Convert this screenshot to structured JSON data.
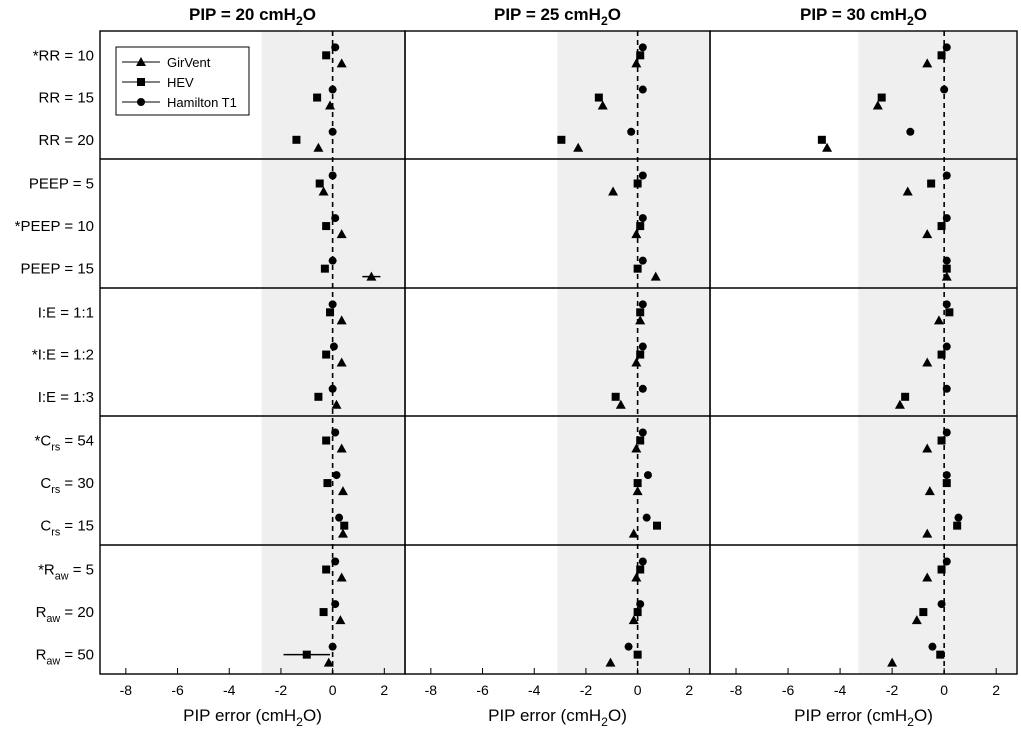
{
  "figure": {
    "xlabel": "PIP error (cmH2O)",
    "xlim": [
      -9,
      2.8
    ],
    "xticks": [
      -8,
      -6,
      -4,
      -2,
      0,
      2
    ],
    "tolerance_note": "grey band marks clinical tolerance region"
  },
  "chart_data": {
    "type": "scatter",
    "row_labels": [
      {
        "prefix": "*",
        "base": "RR",
        "sub": "",
        "value": "10"
      },
      {
        "prefix": "",
        "base": "RR",
        "sub": "",
        "value": "15"
      },
      {
        "prefix": "",
        "base": "RR",
        "sub": "",
        "value": "20"
      },
      {
        "prefix": "",
        "base": "PEEP",
        "sub": "",
        "value": "5"
      },
      {
        "prefix": "*",
        "base": "PEEP",
        "sub": "",
        "value": "10"
      },
      {
        "prefix": "",
        "base": "PEEP",
        "sub": "",
        "value": "15"
      },
      {
        "prefix": "",
        "base": "I:E",
        "sub": "",
        "value": "1:1"
      },
      {
        "prefix": "*",
        "base": "I:E",
        "sub": "",
        "value": "1:2"
      },
      {
        "prefix": "",
        "base": "I:E",
        "sub": "",
        "value": "1:3"
      },
      {
        "prefix": "*",
        "base": "C",
        "sub": "rs",
        "value": "54"
      },
      {
        "prefix": "",
        "base": "C",
        "sub": "rs",
        "value": "30"
      },
      {
        "prefix": "",
        "base": "C",
        "sub": "rs",
        "value": "15"
      },
      {
        "prefix": "*",
        "base": "R",
        "sub": "aw",
        "value": "5"
      },
      {
        "prefix": "",
        "base": "R",
        "sub": "aw",
        "value": "20"
      },
      {
        "prefix": "",
        "base": "R",
        "sub": "aw",
        "value": "50"
      }
    ],
    "legend": {
      "location": "top-left of first panel",
      "entries": [
        "GirVent",
        "HEV",
        "Hamilton T1"
      ]
    },
    "panels": [
      {
        "title": "PIP = 20 cmH2O",
        "tolerance_band": [
          -2.75,
          2.75
        ],
        "series": [
          {
            "name": "Hamilton T1",
            "marker": "circle",
            "values": [
              0.1,
              0.0,
              0.0,
              0.0,
              0.1,
              0.0,
              0.0,
              0.05,
              0.0,
              0.1,
              0.15,
              0.25,
              0.1,
              0.1,
              0.0
            ],
            "errors": [
              0,
              0,
              0,
              0,
              0,
              0,
              0,
              0,
              0,
              0,
              0,
              0,
              0,
              0,
              0
            ]
          },
          {
            "name": "HEV",
            "marker": "square",
            "values": [
              -0.25,
              -0.6,
              -1.4,
              -0.5,
              -0.25,
              -0.3,
              -0.1,
              -0.25,
              -0.55,
              -0.25,
              -0.2,
              0.45,
              -0.25,
              -0.35,
              -1.0
            ],
            "errors": [
              0,
              0,
              0,
              0,
              0,
              0,
              0,
              0,
              0,
              0,
              0,
              0,
              0,
              0,
              0.9
            ]
          },
          {
            "name": "GirVent",
            "marker": "triangle",
            "values": [
              0.35,
              -0.1,
              -0.55,
              -0.35,
              0.35,
              1.5,
              0.35,
              0.35,
              0.15,
              0.35,
              0.4,
              0.4,
              0.35,
              0.3,
              -0.15
            ],
            "errors": [
              0,
              0,
              0,
              0,
              0,
              0.35,
              0,
              0,
              0,
              0,
              0,
              0,
              0,
              0,
              0
            ]
          }
        ]
      },
      {
        "title": "PIP = 25 cmH2O",
        "tolerance_band": [
          -3.1,
          2.75
        ],
        "series": [
          {
            "name": "Hamilton T1",
            "marker": "circle",
            "values": [
              0.2,
              0.2,
              -0.25,
              0.2,
              0.2,
              0.2,
              0.2,
              0.2,
              0.2,
              0.2,
              0.4,
              0.35,
              0.2,
              0.1,
              -0.35
            ],
            "errors": [
              0,
              0,
              0,
              0,
              0,
              0,
              0,
              0,
              0,
              0,
              0,
              0,
              0,
              0,
              0
            ]
          },
          {
            "name": "HEV",
            "marker": "square",
            "values": [
              0.1,
              -1.5,
              -2.95,
              0.0,
              0.1,
              0.0,
              0.1,
              0.1,
              -0.85,
              0.1,
              0.0,
              0.75,
              0.1,
              0.0,
              0.0
            ],
            "errors": [
              0,
              0,
              0,
              0,
              0,
              0,
              0,
              0,
              0,
              0,
              0,
              0,
              0,
              0,
              0
            ]
          },
          {
            "name": "GirVent",
            "marker": "triangle",
            "values": [
              -0.05,
              -1.35,
              -2.3,
              -0.95,
              -0.05,
              0.7,
              0.1,
              -0.05,
              -0.65,
              -0.05,
              0.0,
              -0.15,
              -0.05,
              -0.15,
              -1.05
            ],
            "errors": [
              0,
              0,
              0,
              0,
              0,
              0,
              0,
              0,
              0,
              0,
              0,
              0,
              0,
              0,
              0
            ]
          }
        ]
      },
      {
        "title": "PIP = 30 cmH2O",
        "tolerance_band": [
          -3.3,
          2.8
        ],
        "series": [
          {
            "name": "Hamilton T1",
            "marker": "circle",
            "values": [
              0.1,
              0.0,
              -1.3,
              0.1,
              0.1,
              0.1,
              0.1,
              0.1,
              0.1,
              0.1,
              0.1,
              0.55,
              0.1,
              -0.1,
              -0.45
            ],
            "errors": [
              0,
              0,
              0,
              0,
              0,
              0,
              0,
              0,
              0,
              0,
              0,
              0,
              0,
              0,
              0
            ]
          },
          {
            "name": "HEV",
            "marker": "square",
            "values": [
              -0.1,
              -2.4,
              -4.7,
              -0.5,
              -0.1,
              0.1,
              0.2,
              -0.1,
              -1.5,
              -0.1,
              0.1,
              0.5,
              -0.1,
              -0.8,
              -0.15
            ],
            "errors": [
              0,
              0,
              0,
              0,
              0,
              0,
              0,
              0,
              0,
              0,
              0,
              0,
              0,
              0,
              0
            ]
          },
          {
            "name": "GirVent",
            "marker": "triangle",
            "values": [
              -0.65,
              -2.55,
              -4.5,
              -1.4,
              -0.65,
              0.1,
              -0.2,
              -0.65,
              -1.7,
              -0.65,
              -0.55,
              -0.65,
              -0.65,
              -1.05,
              -2.0
            ],
            "errors": [
              0,
              0,
              0,
              0,
              0,
              0,
              0,
              0,
              0,
              0,
              0,
              0,
              0,
              0,
              0
            ]
          }
        ]
      }
    ]
  }
}
